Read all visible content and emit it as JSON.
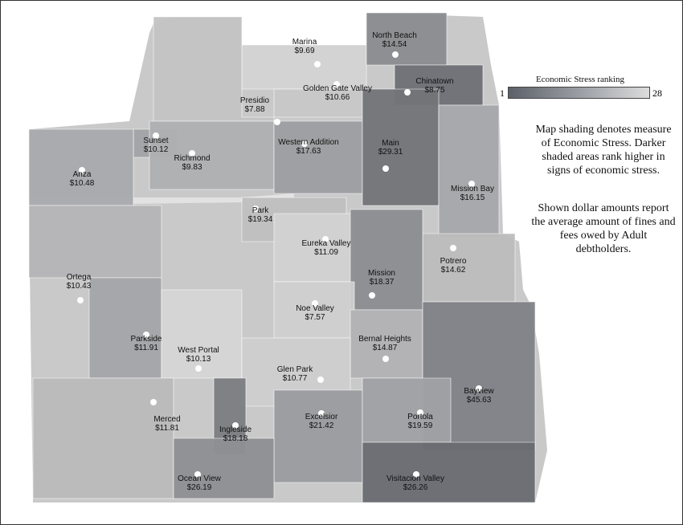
{
  "legend": {
    "title": "Economic Stress ranking",
    "min_label": "1",
    "max_label": "28",
    "gradient_colors": [
      "#5c6068",
      "#9a9ea4",
      "#dcdcdc"
    ]
  },
  "notes": {
    "shading": "Map shading denotes measure of Economic Stress. Darker shaded areas rank higher in signs of economic stress.",
    "amounts": "Shown dollar amounts report the average amount of fines and fees owed by Adult debtholders."
  },
  "neighborhoods": [
    {
      "id": "marina",
      "name": "Marina",
      "value": "$9.69",
      "shade": "#d4d4d4"
    },
    {
      "id": "north-beach",
      "name": "North Beach",
      "value": "$14.54",
      "shade": "#8a8c90"
    },
    {
      "id": "golden-gate-valley",
      "name": "Golden Gate Valley",
      "value": "$10.66",
      "shade": "#c8c8c8"
    },
    {
      "id": "chinatown",
      "name": "Chinatown",
      "value": "$8.75",
      "shade": "#6e7076"
    },
    {
      "id": "presidio",
      "name": "Presidio",
      "value": "$7.88",
      "shade": "#c4c4c4"
    },
    {
      "id": "sunset",
      "name": "Sunset",
      "value": "$10.12",
      "shade": "#a2a4a8"
    },
    {
      "id": "richmond",
      "name": "Richmond",
      "value": "$9.83",
      "shade": "#aeb0b2"
    },
    {
      "id": "western-addition",
      "name": "Western Addition",
      "value": "$17.63",
      "shade": "#9c9ea2"
    },
    {
      "id": "main",
      "name": "Main",
      "value": "$29.31",
      "shade": "#727478"
    },
    {
      "id": "anza",
      "name": "Anza",
      "value": "$10.48",
      "shade": "#a8aaae"
    },
    {
      "id": "mission-bay",
      "name": "Mission Bay",
      "value": "$16.15",
      "shade": "#a6a8ab"
    },
    {
      "id": "park",
      "name": "Park",
      "value": "$19.34",
      "shade": "#c0c0c0"
    },
    {
      "id": "eureka-valley",
      "name": "Eureka Valley",
      "value": "$11.09",
      "shade": "#d2d2d2"
    },
    {
      "id": "potrero",
      "name": "Potrero",
      "value": "$14.62",
      "shade": "#bdbdbd"
    },
    {
      "id": "ortega",
      "name": "Ortega",
      "value": "$10.43",
      "shade": "#b6b6b8"
    },
    {
      "id": "mission",
      "name": "Mission",
      "value": "$18.37",
      "shade": "#8c8e92"
    },
    {
      "id": "noe-valley",
      "name": "Noe Valley",
      "value": "$7.57",
      "shade": "#d0d0d0"
    },
    {
      "id": "parkside",
      "name": "Parkside",
      "value": "$11.91",
      "shade": "#a4a6a9"
    },
    {
      "id": "west-portal",
      "name": "West Portal",
      "value": "$10.13",
      "shade": "#d6d6d6"
    },
    {
      "id": "bernal-heights",
      "name": "Bernal Heights",
      "value": "$14.87",
      "shade": "#b2b2b4"
    },
    {
      "id": "glen-park",
      "name": "Glen Park",
      "value": "$10.77",
      "shade": "#cfcfcf"
    },
    {
      "id": "bayview",
      "name": "Bayview",
      "value": "$45.63",
      "shade": "#808287"
    },
    {
      "id": "merced",
      "name": "Merced",
      "value": "$11.81",
      "shade": "#bbbbbb"
    },
    {
      "id": "excelsior",
      "name": "Excelsior",
      "value": "$21.42",
      "shade": "#9a9c9f"
    },
    {
      "id": "portola",
      "name": "Portola",
      "value": "$19.59",
      "shade": "#a0a2a6"
    },
    {
      "id": "ingleside",
      "name": "Ingleside",
      "value": "$18.18",
      "shade": "#7c7e82"
    },
    {
      "id": "ocean-view",
      "name": "Ocean View",
      "value": "$26.19",
      "shade": "#8e9094"
    },
    {
      "id": "visitacion-valley",
      "name": "Visitacion Valley",
      "value": "$26.26",
      "shade": "#6a6c72"
    }
  ]
}
